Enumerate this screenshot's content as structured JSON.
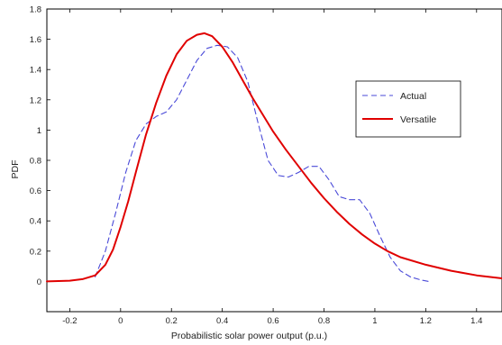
{
  "chart_data": {
    "type": "line",
    "title": "",
    "xlabel": "Probabilistic solar power output (p.u.)",
    "ylabel": "PDF",
    "xlim": [
      -0.29,
      1.5
    ],
    "ylim": [
      -0.2,
      1.8
    ],
    "xticks": [
      -0.2,
      0,
      0.2,
      0.4,
      0.6,
      0.8,
      1,
      1.2,
      1.4
    ],
    "xtick_labels": [
      "-0.2",
      "0",
      "0.2",
      "0.4",
      "0.6",
      "0.8",
      "1",
      "1.2",
      "1.4"
    ],
    "yticks": [
      0,
      0.2,
      0.4,
      0.6,
      0.8,
      1,
      1.2,
      1.4,
      1.6,
      1.8
    ],
    "ytick_labels": [
      "0",
      "0.2",
      "0.4",
      "0.6",
      "0.8",
      "1",
      "1.2",
      "1.4",
      "1.6",
      "1.8"
    ],
    "grid": false,
    "legend_position": "center-right",
    "series": [
      {
        "name": "Actual",
        "color": "#4a4ad8",
        "style": "dashed",
        "x": [
          -0.1,
          -0.06,
          -0.02,
          0.02,
          0.06,
          0.1,
          0.14,
          0.18,
          0.22,
          0.26,
          0.3,
          0.34,
          0.38,
          0.42,
          0.46,
          0.5,
          0.54,
          0.58,
          0.62,
          0.66,
          0.7,
          0.74,
          0.78,
          0.82,
          0.86,
          0.9,
          0.94,
          0.98,
          1.02,
          1.06,
          1.1,
          1.14,
          1.18,
          1.21
        ],
        "y": [
          0.03,
          0.2,
          0.45,
          0.72,
          0.93,
          1.04,
          1.09,
          1.12,
          1.2,
          1.33,
          1.46,
          1.54,
          1.56,
          1.55,
          1.48,
          1.32,
          1.05,
          0.8,
          0.7,
          0.69,
          0.72,
          0.76,
          0.76,
          0.67,
          0.56,
          0.54,
          0.54,
          0.45,
          0.3,
          0.16,
          0.07,
          0.03,
          0.01,
          0.0
        ]
      },
      {
        "name": "Versatile",
        "color": "#e00000",
        "style": "solid",
        "x": [
          -0.29,
          -0.2,
          -0.15,
          -0.1,
          -0.06,
          -0.03,
          0,
          0.03,
          0.06,
          0.1,
          0.14,
          0.18,
          0.22,
          0.26,
          0.3,
          0.33,
          0.36,
          0.4,
          0.44,
          0.48,
          0.52,
          0.56,
          0.6,
          0.65,
          0.7,
          0.75,
          0.8,
          0.85,
          0.9,
          0.95,
          1.0,
          1.05,
          1.1,
          1.2,
          1.3,
          1.4,
          1.5
        ],
        "y": [
          0.0,
          0.005,
          0.015,
          0.04,
          0.11,
          0.21,
          0.36,
          0.53,
          0.72,
          0.97,
          1.18,
          1.36,
          1.5,
          1.59,
          1.63,
          1.64,
          1.62,
          1.55,
          1.45,
          1.33,
          1.21,
          1.1,
          0.99,
          0.87,
          0.76,
          0.65,
          0.55,
          0.46,
          0.38,
          0.31,
          0.25,
          0.2,
          0.16,
          0.11,
          0.07,
          0.04,
          0.02
        ]
      }
    ]
  }
}
